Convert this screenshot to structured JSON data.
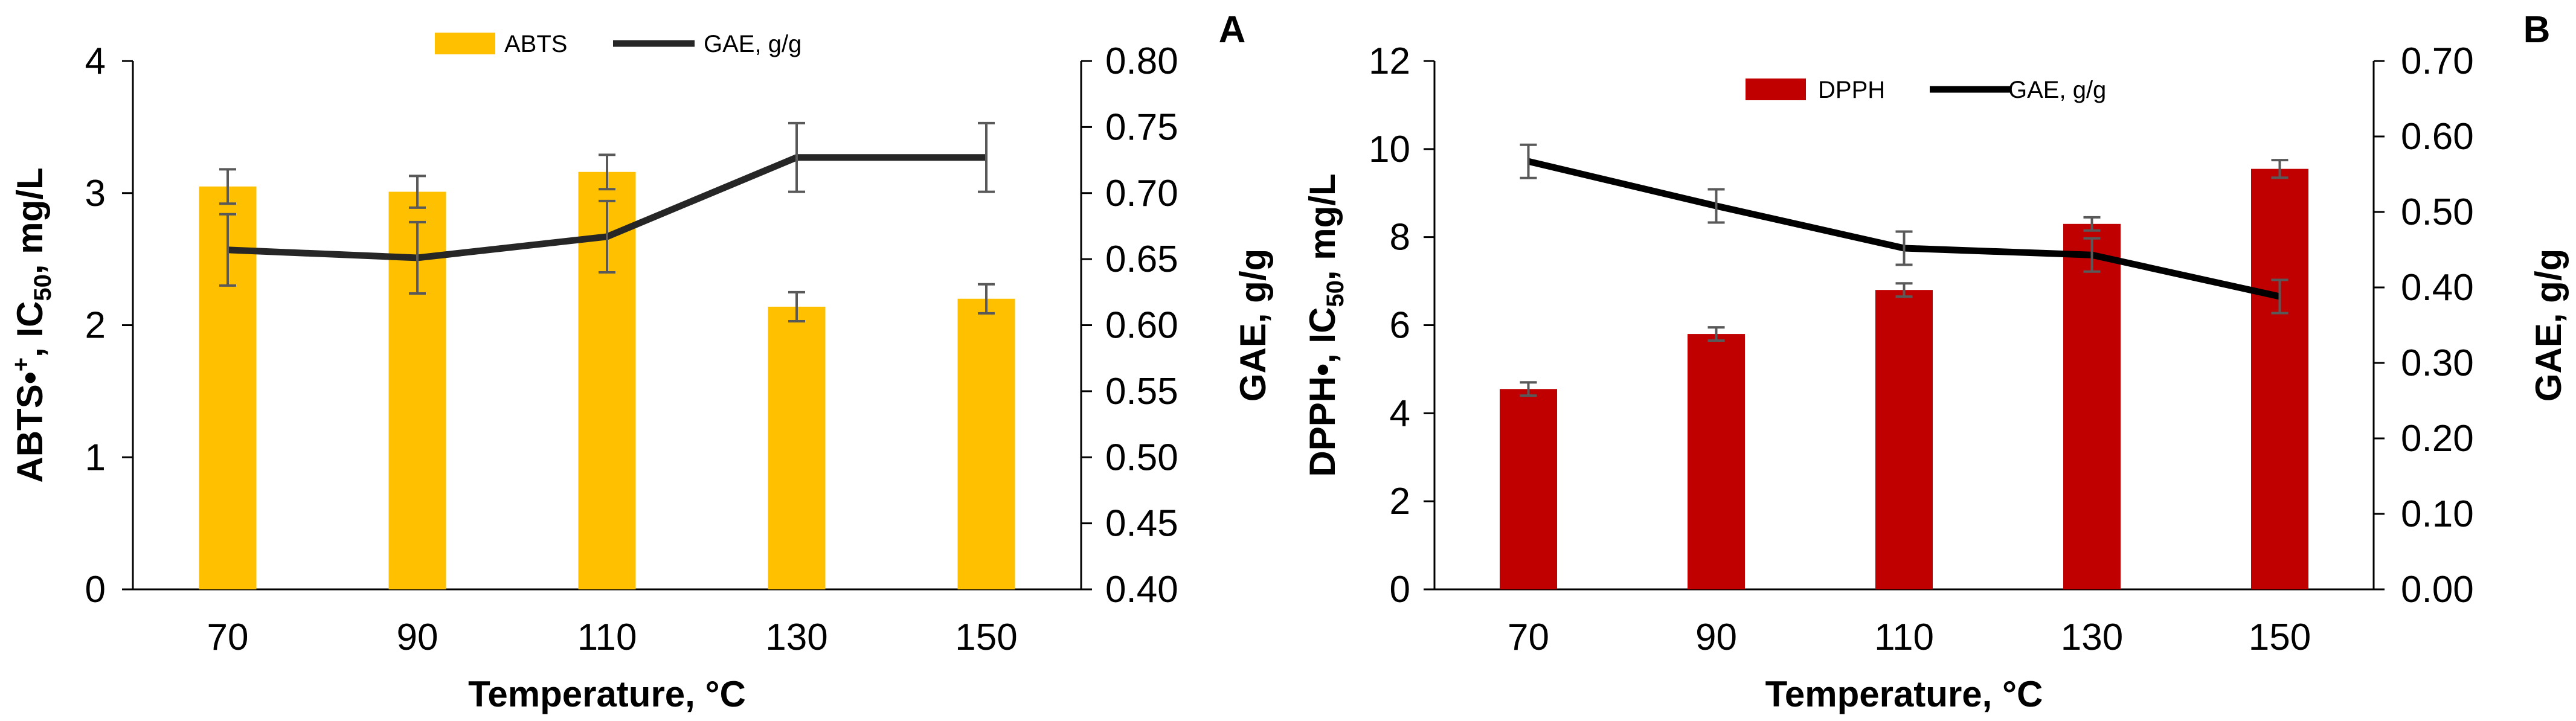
{
  "chart_data": [
    {
      "panel": "A",
      "type": "bar",
      "categories": [
        "70",
        "90",
        "110",
        "130",
        "150"
      ],
      "xlabel": "Temperature, °C",
      "ylabel_parts": [
        "ABTS•",
        "+",
        ", IC",
        "50",
        ", mg/L"
      ],
      "y2label": "GAE, g/g",
      "ylim": [
        0,
        4
      ],
      "yticks": [
        "0",
        "1",
        "2",
        "3",
        "4"
      ],
      "y2lim": [
        0.4,
        0.8
      ],
      "y2ticks": [
        "0.40",
        "0.45",
        "0.50",
        "0.55",
        "0.60",
        "0.65",
        "0.70",
        "0.75",
        "0.80"
      ],
      "bar_series": {
        "name": "ABTS",
        "color": "#FFC000",
        "values": [
          3.05,
          3.01,
          3.16,
          2.14,
          2.2
        ],
        "errors": [
          0.13,
          0.12,
          0.13,
          0.11,
          0.11
        ]
      },
      "line_series": {
        "name": "GAE, g/g",
        "color": "#262626",
        "values": [
          0.657,
          0.651,
          0.667,
          0.727,
          0.727
        ],
        "errors": [
          0.027,
          0.027,
          0.027,
          0.026,
          0.026
        ]
      },
      "legend": "top-center"
    },
    {
      "panel": "B",
      "type": "bar",
      "categories": [
        "70",
        "90",
        "110",
        "130",
        "150"
      ],
      "xlabel": "Temperature, °C",
      "ylabel_parts": [
        "DPPH•, IC",
        "50",
        ", mg/L"
      ],
      "y2label": "GAE, g/g",
      "ylim": [
        0,
        12
      ],
      "yticks": [
        "0",
        "2",
        "4",
        "6",
        "8",
        "10",
        "12"
      ],
      "y2lim": [
        0,
        0.7
      ],
      "y2ticks": [
        "0.00",
        "0.10",
        "0.20",
        "0.30",
        "0.40",
        "0.50",
        "0.60",
        "0.70"
      ],
      "bar_series": {
        "name": "DPPH",
        "color": "#C00000",
        "values": [
          4.55,
          5.8,
          6.8,
          8.3,
          9.55
        ],
        "errors": [
          0.15,
          0.15,
          0.15,
          0.15,
          0.2
        ]
      },
      "line_series": {
        "name": "GAE, g/g",
        "color": "#000000",
        "values": [
          0.567,
          0.508,
          0.452,
          0.443,
          0.388
        ],
        "errors": [
          0.022,
          0.022,
          0.022,
          0.022,
          0.022
        ]
      },
      "legend": "top-center"
    }
  ]
}
